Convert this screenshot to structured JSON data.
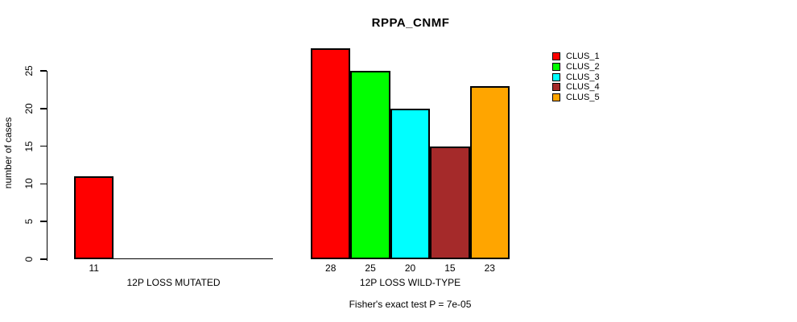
{
  "chart_data": {
    "type": "bar",
    "title": "RPPA_CNMF",
    "ylabel": "number of cases",
    "yticks": [
      0,
      5,
      10,
      15,
      20,
      25
    ],
    "ylim": [
      0,
      25
    ],
    "grid": false,
    "legend_position": "right",
    "groups": [
      {
        "label": "12P LOSS MUTATED",
        "bars": [
          {
            "cluster": "CLUS_1",
            "value": 11,
            "color": "#FF0000"
          }
        ]
      },
      {
        "label": "12P LOSS WILD-TYPE",
        "bars": [
          {
            "cluster": "CLUS_1",
            "value": 28,
            "color": "#FF0000"
          },
          {
            "cluster": "CLUS_2",
            "value": 25,
            "color": "#00FF00"
          },
          {
            "cluster": "CLUS_3",
            "value": 20,
            "color": "#00FFFF"
          },
          {
            "cluster": "CLUS_4",
            "value": 15,
            "color": "#A52A2A"
          },
          {
            "cluster": "CLUS_5",
            "value": 23,
            "color": "#FFA500"
          }
        ]
      }
    ],
    "legend": [
      {
        "label": "CLUS_1",
        "color": "#FF0000"
      },
      {
        "label": "CLUS_2",
        "color": "#00FF00"
      },
      {
        "label": "CLUS_3",
        "color": "#00FFFF"
      },
      {
        "label": "CLUS_4",
        "color": "#A52A2A"
      },
      {
        "label": "CLUS_5",
        "color": "#FFA500"
      }
    ],
    "annotation": "Fisher's exact test P = 7e-05"
  }
}
